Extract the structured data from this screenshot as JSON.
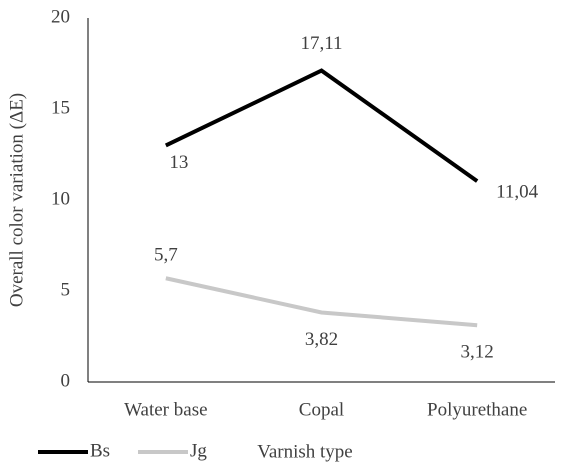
{
  "chart_data": {
    "type": "line",
    "categories": [
      "Water base",
      "Copal",
      "Polyurethane"
    ],
    "series": [
      {
        "name": "Bs",
        "color": "#000000",
        "values": [
          13,
          17.11,
          11.04
        ],
        "value_labels": [
          "13",
          "17,11",
          "11,04"
        ]
      },
      {
        "name": "Jg",
        "color": "#c8c8c8",
        "values": [
          5.7,
          3.82,
          3.12
        ],
        "value_labels": [
          "5,7",
          "3,82",
          "3,12"
        ]
      }
    ],
    "ylim": [
      0,
      20
    ],
    "yticks": [
      0,
      5,
      10,
      15,
      20
    ],
    "y_label": "Overall color variation (ΔE)",
    "x_label": "Varnish type",
    "grid": false,
    "legend": "bottom-left"
  }
}
